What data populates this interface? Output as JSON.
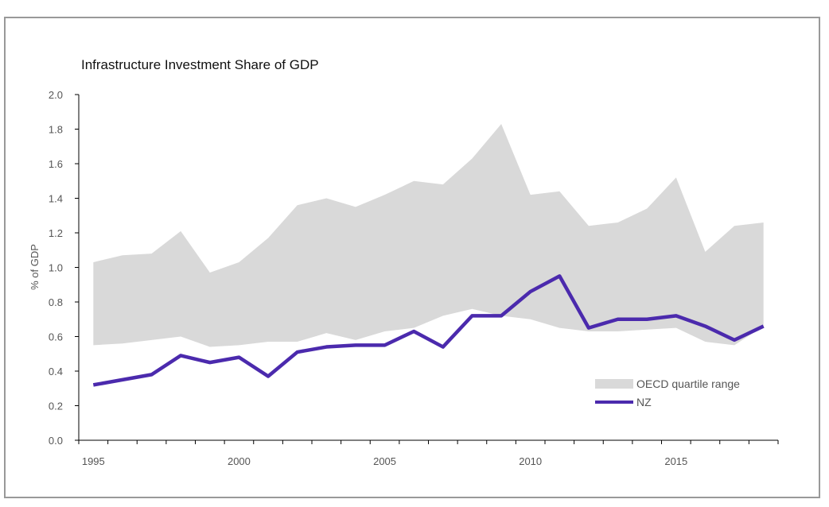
{
  "chart_data": {
    "type": "line",
    "title": "Infrastructure Investment Share of GDP",
    "xlabel": "",
    "ylabel": "% of GDP",
    "x": [
      1995,
      1996,
      1997,
      1998,
      1999,
      2000,
      2001,
      2002,
      2003,
      2004,
      2005,
      2006,
      2007,
      2008,
      2009,
      2010,
      2011,
      2012,
      2013,
      2014,
      2015,
      2016,
      2017,
      2018
    ],
    "xticks": [
      "1995",
      "2000",
      "2005",
      "2010",
      "2015"
    ],
    "yticks": [
      "0.0",
      "0.2",
      "0.4",
      "0.6",
      "0.8",
      "1.0",
      "1.2",
      "1.4",
      "1.6",
      "1.8",
      "2.0"
    ],
    "ylim": [
      0,
      2.0
    ],
    "xlim": [
      1995,
      2019
    ],
    "grid": false,
    "legend_position": "bottom-right",
    "series": [
      {
        "name": "OECD quartile range",
        "kind": "band",
        "color": "#d9d9d9",
        "lower": [
          0.55,
          0.56,
          0.58,
          0.6,
          0.54,
          0.55,
          0.57,
          0.57,
          0.62,
          0.58,
          0.63,
          0.65,
          0.72,
          0.76,
          0.72,
          0.7,
          0.65,
          0.63,
          0.63,
          0.64,
          0.65,
          0.57,
          0.55,
          0.66
        ],
        "upper": [
          1.03,
          1.07,
          1.08,
          1.21,
          0.97,
          1.03,
          1.17,
          1.36,
          1.4,
          1.35,
          1.42,
          1.5,
          1.48,
          1.63,
          1.83,
          1.42,
          1.44,
          1.24,
          1.26,
          1.34,
          1.52,
          1.09,
          1.24,
          1.26
        ]
      },
      {
        "name": "NZ",
        "kind": "line",
        "color": "#4b2aad",
        "values": [
          0.32,
          0.35,
          0.38,
          0.49,
          0.45,
          0.48,
          0.37,
          0.51,
          0.54,
          0.55,
          0.55,
          0.63,
          0.54,
          0.72,
          0.72,
          0.86,
          0.95,
          0.65,
          0.7,
          0.7,
          0.72,
          0.66,
          0.58,
          0.66
        ]
      }
    ]
  }
}
